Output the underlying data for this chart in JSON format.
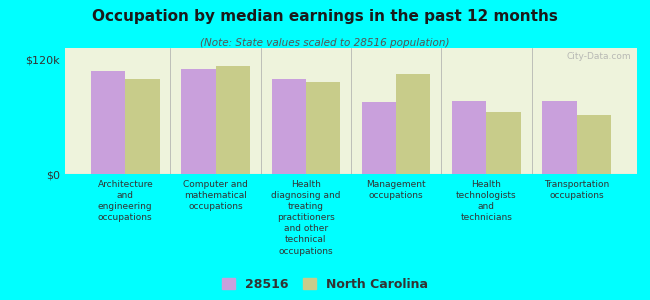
{
  "title": "Occupation by median earnings in the past 12 months",
  "subtitle": "(Note: State values scaled to 28516 population)",
  "background_color": "#00FFFF",
  "plot_bg_color": "#eef3dc",
  "categories": [
    "Architecture\nand\nengineering\noccupations",
    "Computer and\nmathematical\noccupations",
    "Health\ndiagnosing and\ntreating\npractitioners\nand other\ntechnical\noccupations",
    "Management\noccupations",
    "Health\ntechnologists\nand\ntechnicians",
    "Transportation\noccupations"
  ],
  "values_28516": [
    108000,
    110000,
    100000,
    75000,
    76000,
    76000
  ],
  "values_nc": [
    100000,
    113000,
    96000,
    105000,
    65000,
    62000
  ],
  "color_28516": "#c9a0dc",
  "color_nc": "#c8cc8a",
  "ylim": [
    0,
    132000
  ],
  "yticks": [
    0,
    120000
  ],
  "ytick_labels": [
    "$0",
    "$120k"
  ],
  "legend_labels": [
    "28516",
    "North Carolina"
  ],
  "bar_width": 0.38,
  "watermark": "City-Data.com"
}
